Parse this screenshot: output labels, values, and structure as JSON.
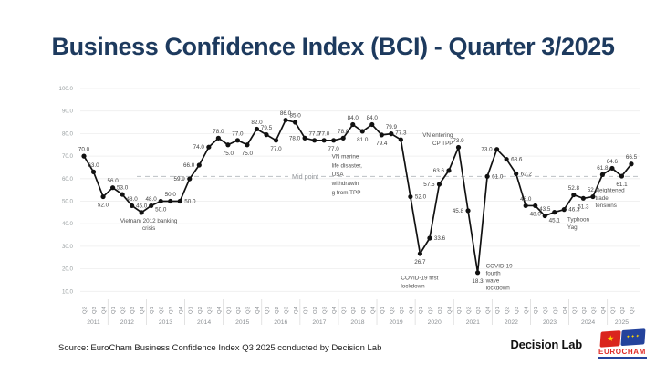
{
  "title": "Business Confidence Index (BCI) - Quarter 3/2025",
  "source_line": "Source: EuroCham Business Confidence Index Q3 2025 conducted by Decision Lab",
  "branding": {
    "decision_lab_label": "Decision Lab",
    "eurocham_label": "EUROCHAM",
    "vietnam_flag_star": "★",
    "eu_flag_stars": "✦✦✦"
  },
  "colors": {
    "title_navy": "#1d3a5e",
    "line_black": "#111111",
    "data_label": "#3f3f3f",
    "axis_gray": "#9aa0a2",
    "grid_gray": "#ededed",
    "midline_gray": "#bcc0c4",
    "annotation_gray": "#4f4f4f",
    "eurocham_red": "#e02b27",
    "vietnam_flag_red": "#da251d",
    "eu_flag_blue": "#24439c",
    "star_yellow": "#ffd500"
  },
  "chart_data": {
    "type": "line",
    "title": "Business Confidence Index (BCI) - Quarter 3/2025",
    "ylim": [
      10,
      100
    ],
    "yticks": [
      "100.0",
      "90.0",
      "80.0",
      "70.0",
      "60.0",
      "50.0",
      "40.0",
      "30.0",
      "20.0",
      "10.0"
    ],
    "grid": true,
    "midline": {
      "value": 61,
      "label": "Mid point"
    },
    "years": [
      {
        "year": "2011",
        "quarters": [
          "Q2",
          "Q3",
          "Q4"
        ]
      },
      {
        "year": "2012",
        "quarters": [
          "Q1",
          "Q2",
          "Q3",
          "Q4"
        ]
      },
      {
        "year": "2013",
        "quarters": [
          "Q1",
          "Q2",
          "Q3",
          "Q4"
        ]
      },
      {
        "year": "2014",
        "quarters": [
          "Q1",
          "Q2",
          "Q3",
          "Q4"
        ]
      },
      {
        "year": "2015",
        "quarters": [
          "Q1",
          "Q2",
          "Q3",
          "Q4"
        ]
      },
      {
        "year": "2016",
        "quarters": [
          "Q1",
          "Q2",
          "Q3",
          "Q4"
        ]
      },
      {
        "year": "2017",
        "quarters": [
          "Q1",
          "Q2",
          "Q3",
          "Q4"
        ]
      },
      {
        "year": "2018",
        "quarters": [
          "Q1",
          "Q2",
          "Q3",
          "Q4"
        ]
      },
      {
        "year": "2019",
        "quarters": [
          "Q1",
          "Q2",
          "Q3",
          "Q4"
        ]
      },
      {
        "year": "2020",
        "quarters": [
          "Q1",
          "Q2",
          "Q3",
          "Q4"
        ]
      },
      {
        "year": "2021",
        "quarters": [
          "Q1",
          "Q2",
          "Q3",
          "Q4"
        ]
      },
      {
        "year": "2022",
        "quarters": [
          "Q1",
          "Q2",
          "Q3",
          "Q4"
        ]
      },
      {
        "year": "2023",
        "quarters": [
          "Q1",
          "Q2",
          "Q3",
          "Q4"
        ]
      },
      {
        "year": "2024",
        "quarters": [
          "Q1",
          "Q2",
          "Q3",
          "Q4"
        ]
      },
      {
        "year": "2025",
        "quarters": [
          "Q1",
          "Q2",
          "Q3"
        ]
      }
    ],
    "points": [
      {
        "year": "2011",
        "q": "Q2",
        "v": 70.0,
        "lp": "a"
      },
      {
        "year": "2011",
        "q": "Q3",
        "v": 63.0,
        "lp": "a"
      },
      {
        "year": "2011",
        "q": "Q4",
        "v": 52.0,
        "lp": "b"
      },
      {
        "year": "2012",
        "q": "Q1",
        "v": 56.0,
        "lp": "a"
      },
      {
        "year": "2012",
        "q": "Q2",
        "v": 53.0,
        "lp": "a"
      },
      {
        "year": "2012",
        "q": "Q3",
        "v": 48.0,
        "lp": "a"
      },
      {
        "year": "2012",
        "q": "Q4",
        "v": 45.0,
        "lp": "a"
      },
      {
        "year": "2013",
        "q": "Q1",
        "v": 48.0,
        "lp": "a"
      },
      {
        "year": "2013",
        "q": "Q2",
        "v": 50.0,
        "lp": "b"
      },
      {
        "year": "2013",
        "q": "Q3",
        "v": 50.0,
        "lp": "a"
      },
      {
        "year": "2013",
        "q": "Q4",
        "v": 50.0,
        "lp": "r"
      },
      {
        "year": "2014",
        "q": "Q1",
        "v": 59.9,
        "lp": "l"
      },
      {
        "year": "2014",
        "q": "Q2",
        "v": 66.0,
        "lp": "l"
      },
      {
        "year": "2014",
        "q": "Q3",
        "v": 74.0,
        "lp": "l"
      },
      {
        "year": "2014",
        "q": "Q4",
        "v": 78.0,
        "lp": "a"
      },
      {
        "year": "2015",
        "q": "Q1",
        "v": 75.0,
        "lp": "b"
      },
      {
        "year": "2015",
        "q": "Q2",
        "v": 77.0,
        "lp": "a"
      },
      {
        "year": "2015",
        "q": "Q3",
        "v": 75.0,
        "lp": "b"
      },
      {
        "year": "2015",
        "q": "Q4",
        "v": 82.0,
        "lp": "a"
      },
      {
        "year": "2016",
        "q": "Q1",
        "v": 79.5,
        "lp": "a"
      },
      {
        "year": "2016",
        "q": "Q2",
        "v": 77.0,
        "lp": "b"
      },
      {
        "year": "2016",
        "q": "Q3",
        "v": 86.0,
        "lp": "a"
      },
      {
        "year": "2016",
        "q": "Q4",
        "v": 85.0,
        "lp": "a"
      },
      {
        "year": "2017",
        "q": "Q1",
        "v": 78.0,
        "lp": "l"
      },
      {
        "year": "2017",
        "q": "Q2",
        "v": 77.0,
        "lp": "a"
      },
      {
        "year": "2017",
        "q": "Q3",
        "v": 77.0,
        "lp": "a"
      },
      {
        "year": "2017",
        "q": "Q4",
        "v": 77.0,
        "lp": "b"
      },
      {
        "year": "2018",
        "q": "Q1",
        "v": 78.0,
        "lp": "a"
      },
      {
        "year": "2018",
        "q": "Q2",
        "v": 84.0,
        "lp": "a"
      },
      {
        "year": "2018",
        "q": "Q3",
        "v": 81.0,
        "lp": "b"
      },
      {
        "year": "2018",
        "q": "Q4",
        "v": 84.0,
        "lp": "a"
      },
      {
        "year": "2019",
        "q": "Q1",
        "v": 79.4,
        "lp": "b"
      },
      {
        "year": "2019",
        "q": "Q2",
        "v": 79.9,
        "lp": "a"
      },
      {
        "year": "2019",
        "q": "Q3",
        "v": 77.3,
        "lp": "a"
      },
      {
        "year": "2019",
        "q": "Q4",
        "v": 52.0,
        "lp": "r"
      },
      {
        "year": "2020",
        "q": "Q1",
        "v": 26.7,
        "lp": "b"
      },
      {
        "year": "2020",
        "q": "Q2",
        "v": 33.6,
        "lp": "r"
      },
      {
        "year": "2020",
        "q": "Q3",
        "v": 57.5,
        "lp": "l"
      },
      {
        "year": "2020",
        "q": "Q4",
        "v": 63.6,
        "lp": "l"
      },
      {
        "year": "2021",
        "q": "Q1",
        "v": 73.9,
        "lp": "a"
      },
      {
        "year": "2021",
        "q": "Q2",
        "v": 45.8,
        "lp": "l"
      },
      {
        "year": "2021",
        "q": "Q3",
        "v": 18.3,
        "lp": "b"
      },
      {
        "year": "2021",
        "q": "Q4",
        "v": 61.0,
        "lp": "r"
      },
      {
        "year": "2022",
        "q": "Q1",
        "v": 73.0,
        "lp": "l"
      },
      {
        "year": "2022",
        "q": "Q2",
        "v": 68.6,
        "lp": "r"
      },
      {
        "year": "2022",
        "q": "Q3",
        "v": 62.2,
        "lp": "r"
      },
      {
        "year": "2022",
        "q": "Q4",
        "v": 48.0,
        "lp": "a"
      },
      {
        "year": "2023",
        "q": "Q1",
        "v": 48.0,
        "lp": "b"
      },
      {
        "year": "2023",
        "q": "Q2",
        "v": 43.5,
        "lp": "a"
      },
      {
        "year": "2023",
        "q": "Q3",
        "v": 45.1,
        "lp": "b"
      },
      {
        "year": "2023",
        "q": "Q4",
        "v": 46.3,
        "lp": "r"
      },
      {
        "year": "2024",
        "q": "Q1",
        "v": 52.8,
        "lp": "a"
      },
      {
        "year": "2024",
        "q": "Q2",
        "v": 51.3,
        "lp": "b"
      },
      {
        "year": "2024",
        "q": "Q3",
        "v": 52.0,
        "lp": "a"
      },
      {
        "year": "2024",
        "q": "Q4",
        "v": 61.8,
        "lp": "a"
      },
      {
        "year": "2025",
        "q": "Q1",
        "v": 64.6,
        "lp": "a"
      },
      {
        "year": "2025",
        "q": "Q2",
        "v": 61.1,
        "lp": "b"
      },
      {
        "year": "2025",
        "q": "Q3",
        "v": 66.5,
        "lp": "a"
      }
    ],
    "annotations": [
      {
        "id": "banking-crisis",
        "lines": [
          "Vietnam 2012 banking",
          "crisis"
        ],
        "xi": 6,
        "dx": 8,
        "v": 40.5,
        "align": "middle",
        "lh": 8.2
      },
      {
        "id": "vn-marine-tpp",
        "lines": [
          "VN marine",
          "life disaster,",
          "USA",
          "withdrawin",
          "g from TPP"
        ],
        "xi": 26,
        "dx": -2,
        "v": 69,
        "align": "start",
        "lh": 9.8
      },
      {
        "id": "covid-first-lockdown",
        "lines": [
          "COVID-19 first",
          "lockdown"
        ],
        "xi": 35,
        "dx": -21,
        "v": 15.2,
        "align": "start",
        "lh": 8.8
      },
      {
        "id": "vn-entering-cptpp",
        "lines": [
          "VN entering",
          "CP TPP"
        ],
        "xi": 39,
        "dx": -6,
        "v": 78.5,
        "align": "end",
        "lh": 8.8
      },
      {
        "id": "covid-fourth-lockdown",
        "lines": [
          "COVID-19",
          "fourth",
          "wave",
          "lockdown"
        ],
        "xi": 41,
        "dx": 9,
        "v": 20.5,
        "align": "start",
        "lh": 8.0
      },
      {
        "id": "typhoon-yagi",
        "lines": [
          "Typhoon",
          "Yagi"
        ],
        "xi": 53,
        "dx": -28,
        "v": 41,
        "align": "start",
        "lh": 8.2
      },
      {
        "id": "trade-tensions",
        "lines": [
          "Heightened",
          "trade",
          "tensions"
        ],
        "xi": 56,
        "dx": -29,
        "v": 54,
        "align": "start",
        "lh": 8.2
      }
    ]
  }
}
